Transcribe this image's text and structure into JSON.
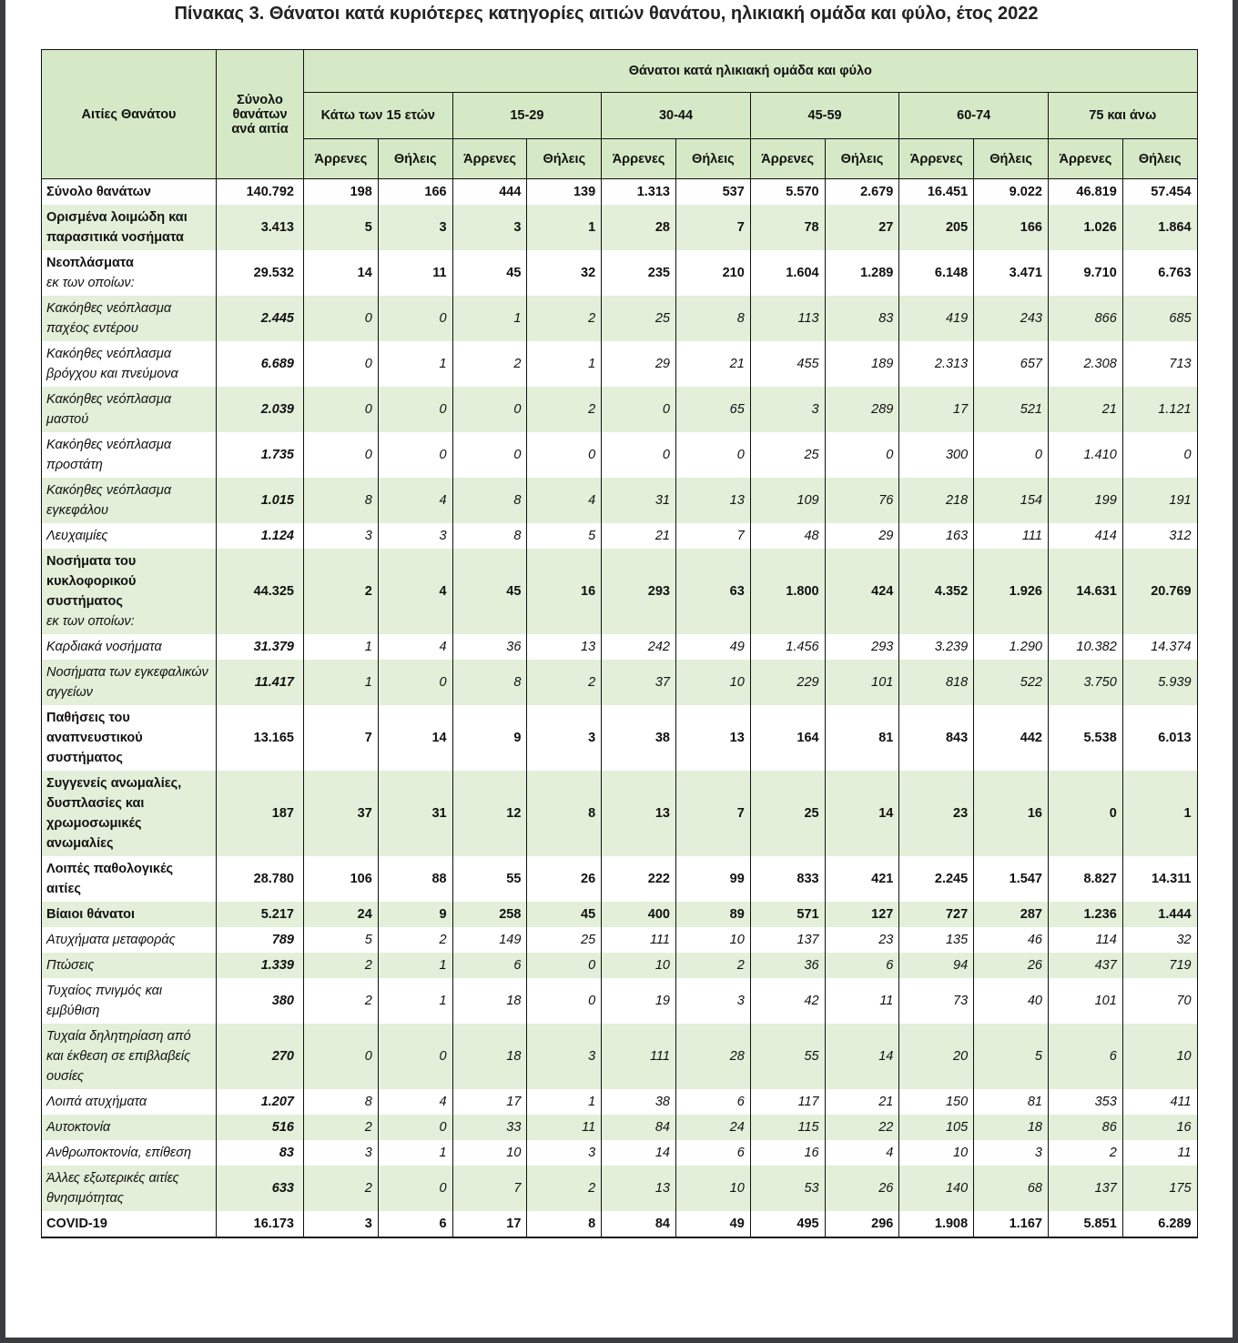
{
  "title": "Πίνακας 3. Θάνατοι κατά κυριότερες κατηγορίες αιτιών θανάτου, ηλικιακή ομάδα και φύλο, έτος 2022",
  "header": {
    "causes": "Αιτίες Θανάτου",
    "total": "Σύνολο θανάτων ανά αιτία",
    "group": "Θάνατοι κατά ηλικιακή ομάδα και φύλο",
    "age_groups": [
      "Κάτω των 15 ετών",
      "15-29",
      "30-44",
      "45-59",
      "60-74",
      "75 και άνω"
    ],
    "male": "Άρρενες",
    "female": "Θήλεις"
  },
  "rows": [
    {
      "label": "Σύνολο θανάτων",
      "style": "bold",
      "total": "140.792",
      "values": [
        "198",
        "166",
        "444",
        "139",
        "1.313",
        "537",
        "5.570",
        "2.679",
        "16.451",
        "9.022",
        "46.819",
        "57.454"
      ]
    },
    {
      "label": "Ορισμένα λοιμώδη και παρασιτικά νοσήματα",
      "style": "bold",
      "total": "3.413",
      "values": [
        "5",
        "3",
        "3",
        "1",
        "28",
        "7",
        "78",
        "27",
        "205",
        "166",
        "1.026",
        "1.864"
      ]
    },
    {
      "label": "Νεοπλάσματα",
      "note": "εκ των οποίων:",
      "style": "bold",
      "total": "29.532",
      "values": [
        "14",
        "11",
        "45",
        "32",
        "235",
        "210",
        "1.604",
        "1.289",
        "6.148",
        "3.471",
        "9.710",
        "6.763"
      ]
    },
    {
      "label": "Κακόηθες νεόπλασμα παχέος εντέρου",
      "style": "it",
      "total": "2.445",
      "values": [
        "0",
        "0",
        "1",
        "2",
        "25",
        "8",
        "113",
        "83",
        "419",
        "243",
        "866",
        "685"
      ]
    },
    {
      "label": "Κακόηθες νεόπλασμα βρόγχου και πνεύμονα",
      "style": "it",
      "total": "6.689",
      "values": [
        "0",
        "1",
        "2",
        "1",
        "29",
        "21",
        "455",
        "189",
        "2.313",
        "657",
        "2.308",
        "713"
      ]
    },
    {
      "label": "Κακόηθες νεόπλασμα μαστού",
      "style": "it",
      "total": "2.039",
      "values": [
        "0",
        "0",
        "0",
        "2",
        "0",
        "65",
        "3",
        "289",
        "17",
        "521",
        "21",
        "1.121"
      ]
    },
    {
      "label": "Κακόηθες νεόπλασμα προστάτη",
      "style": "it",
      "total": "1.735",
      "values": [
        "0",
        "0",
        "0",
        "0",
        "0",
        "0",
        "25",
        "0",
        "300",
        "0",
        "1.410",
        "0"
      ]
    },
    {
      "label": "Κακόηθες νεόπλασμα εγκεφάλου",
      "style": "it",
      "total": "1.015",
      "values": [
        "8",
        "4",
        "8",
        "4",
        "31",
        "13",
        "109",
        "76",
        "218",
        "154",
        "199",
        "191"
      ]
    },
    {
      "label": "Λευχαιμίες",
      "style": "it",
      "total": "1.124",
      "values": [
        "3",
        "3",
        "8",
        "5",
        "21",
        "7",
        "48",
        "29",
        "163",
        "111",
        "414",
        "312"
      ]
    },
    {
      "label": "Νοσήματα του κυκλοφορικού συστήματος",
      "note": "εκ των οποίων:",
      "style": "bold",
      "total": "44.325",
      "values": [
        "2",
        "4",
        "45",
        "16",
        "293",
        "63",
        "1.800",
        "424",
        "4.352",
        "1.926",
        "14.631",
        "20.769"
      ]
    },
    {
      "label": "Καρδιακά νοσήματα",
      "style": "it",
      "total": "31.379",
      "values": [
        "1",
        "4",
        "36",
        "13",
        "242",
        "49",
        "1.456",
        "293",
        "3.239",
        "1.290",
        "10.382",
        "14.374"
      ]
    },
    {
      "label": "Νοσήματα των εγκεφαλικών αγγείων",
      "style": "it",
      "total": "11.417",
      "values": [
        "1",
        "0",
        "8",
        "2",
        "37",
        "10",
        "229",
        "101",
        "818",
        "522",
        "3.750",
        "5.939"
      ]
    },
    {
      "label": "Παθήσεις του αναπνευστικού συστήματος",
      "style": "bold",
      "total": "13.165",
      "values": [
        "7",
        "14",
        "9",
        "3",
        "38",
        "13",
        "164",
        "81",
        "843",
        "442",
        "5.538",
        "6.013"
      ]
    },
    {
      "label": "Συγγενείς ανωμαλίες, δυσπλασίες και χρωμοσωμικές ανωμαλίες",
      "style": "bold",
      "total": "187",
      "values": [
        "37",
        "31",
        "12",
        "8",
        "13",
        "7",
        "25",
        "14",
        "23",
        "16",
        "0",
        "1"
      ]
    },
    {
      "label": "Λοιπές παθολογικές αιτίες",
      "style": "bold",
      "total": "28.780",
      "values": [
        "106",
        "88",
        "55",
        "26",
        "222",
        "99",
        "833",
        "421",
        "2.245",
        "1.547",
        "8.827",
        "14.311"
      ]
    },
    {
      "label": "Βίαιοι θάνατοι",
      "style": "bold",
      "total": "5.217",
      "values": [
        "24",
        "9",
        "258",
        "45",
        "400",
        "89",
        "571",
        "127",
        "727",
        "287",
        "1.236",
        "1.444"
      ]
    },
    {
      "label": "Ατυχήματα μεταφοράς",
      "style": "it",
      "total": "789",
      "values": [
        "5",
        "2",
        "149",
        "25",
        "111",
        "10",
        "137",
        "23",
        "135",
        "46",
        "114",
        "32"
      ]
    },
    {
      "label": "Πτώσεις",
      "style": "it",
      "total": "1.339",
      "values": [
        "2",
        "1",
        "6",
        "0",
        "10",
        "2",
        "36",
        "6",
        "94",
        "26",
        "437",
        "719"
      ]
    },
    {
      "label": "Τυχαίος πνιγμός και εμβύθιση",
      "style": "it",
      "total": "380",
      "values": [
        "2",
        "1",
        "18",
        "0",
        "19",
        "3",
        "42",
        "11",
        "73",
        "40",
        "101",
        "70"
      ]
    },
    {
      "label": "Τυχαία δηλητηρίαση από και έκθεση σε επιβλαβείς ουσίες",
      "style": "it",
      "total": "270",
      "values": [
        "0",
        "0",
        "18",
        "3",
        "111",
        "28",
        "55",
        "14",
        "20",
        "5",
        "6",
        "10"
      ]
    },
    {
      "label": "Λοιπά ατυχήματα",
      "style": "it",
      "total": "1.207",
      "values": [
        "8",
        "4",
        "17",
        "1",
        "38",
        "6",
        "117",
        "21",
        "150",
        "81",
        "353",
        "411"
      ]
    },
    {
      "label": "Αυτοκτονία",
      "style": "it",
      "total": "516",
      "values": [
        "2",
        "0",
        "33",
        "11",
        "84",
        "24",
        "115",
        "22",
        "105",
        "18",
        "86",
        "16"
      ]
    },
    {
      "label": "Ανθρωποκτονία, επίθεση",
      "style": "it",
      "total": "83",
      "values": [
        "3",
        "1",
        "10",
        "3",
        "14",
        "6",
        "16",
        "4",
        "10",
        "3",
        "2",
        "11"
      ]
    },
    {
      "label": "Άλλες εξωτερικές αιτίες θνησιμότητας",
      "style": "it",
      "total": "633",
      "values": [
        "2",
        "0",
        "7",
        "2",
        "13",
        "10",
        "53",
        "26",
        "140",
        "68",
        "137",
        "175"
      ]
    },
    {
      "label": "COVID-19",
      "style": "bold",
      "total": "16.173",
      "values": [
        "3",
        "6",
        "17",
        "8",
        "84",
        "49",
        "495",
        "296",
        "1.908",
        "1.167",
        "5.851",
        "6.289"
      ]
    }
  ]
}
